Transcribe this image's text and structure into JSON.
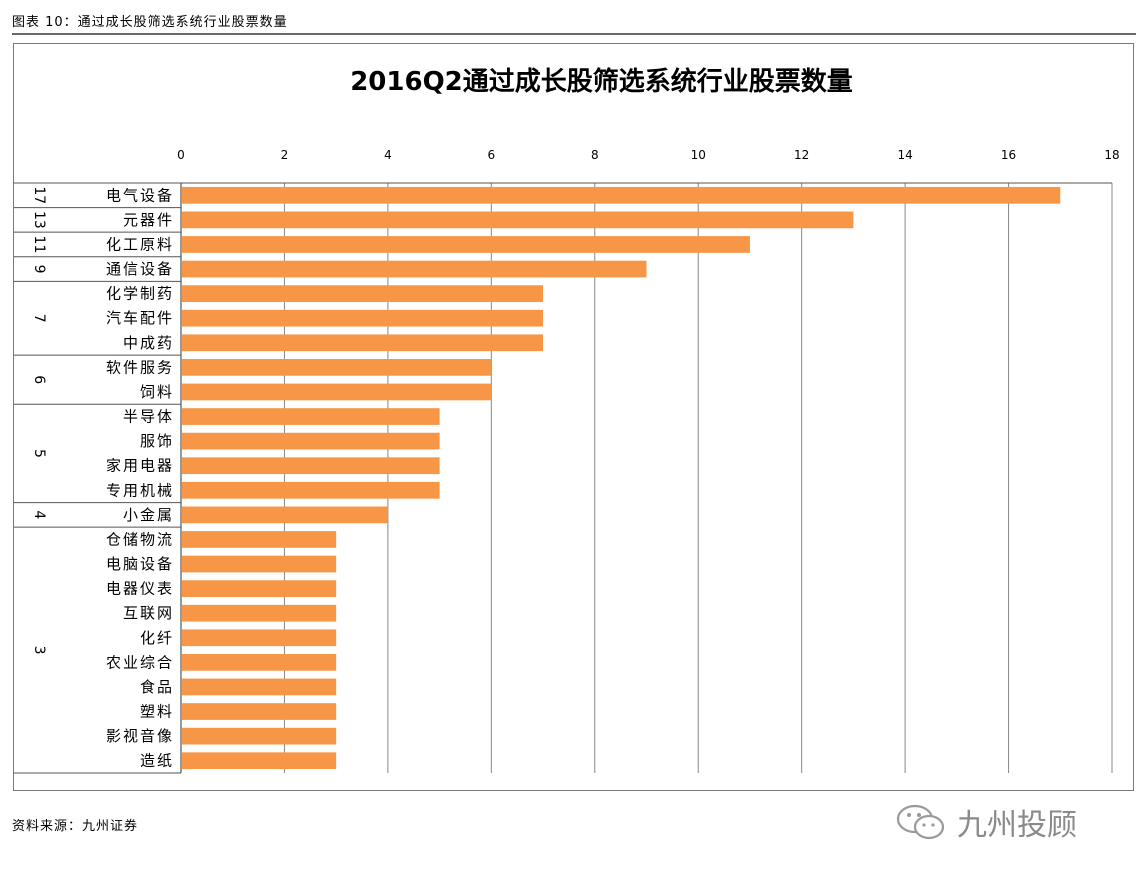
{
  "caption": "图表 10：通过成长股筛选系统行业股票数量",
  "source": "资料来源：九州证券",
  "watermark": "九州投顾",
  "colors": {
    "bar": "#F79646",
    "grid": "#888888",
    "axis": "#555555"
  },
  "chart_data": {
    "type": "bar",
    "orientation": "horizontal",
    "title": "2016Q2通过成长股筛选系统行业股票数量",
    "xlim": [
      0,
      18
    ],
    "x_ticks": [
      "0",
      "2",
      "4",
      "6",
      "8",
      "10",
      "12",
      "14",
      "16",
      "18"
    ],
    "x_axis_position": "top",
    "grid": true,
    "categories": [
      "电气设备",
      "元器件",
      "化工原料",
      "通信设备",
      "化学制药",
      "汽车配件",
      "中成药",
      "软件服务",
      "饲料",
      "半导体",
      "服饰",
      "家用电器",
      "专用机械",
      "小金属",
      "仓储物流",
      "电脑设备",
      "电器仪表",
      "互联网",
      "化纤",
      "农业综合",
      "食品",
      "塑料",
      "影视音像",
      "造纸"
    ],
    "values": [
      17,
      13,
      11,
      9,
      7,
      7,
      7,
      6,
      6,
      5,
      5,
      5,
      5,
      4,
      3,
      3,
      3,
      3,
      3,
      3,
      3,
      3,
      3,
      3
    ],
    "groups": [
      {
        "label": "17",
        "start": 0,
        "count": 1
      },
      {
        "label": "13",
        "start": 1,
        "count": 1
      },
      {
        "label": "11",
        "start": 2,
        "count": 1
      },
      {
        "label": "9",
        "start": 3,
        "count": 1
      },
      {
        "label": "7",
        "start": 4,
        "count": 3
      },
      {
        "label": "6",
        "start": 7,
        "count": 2
      },
      {
        "label": "5",
        "start": 9,
        "count": 4
      },
      {
        "label": "4",
        "start": 13,
        "count": 1
      },
      {
        "label": "3",
        "start": 14,
        "count": 10
      }
    ]
  }
}
